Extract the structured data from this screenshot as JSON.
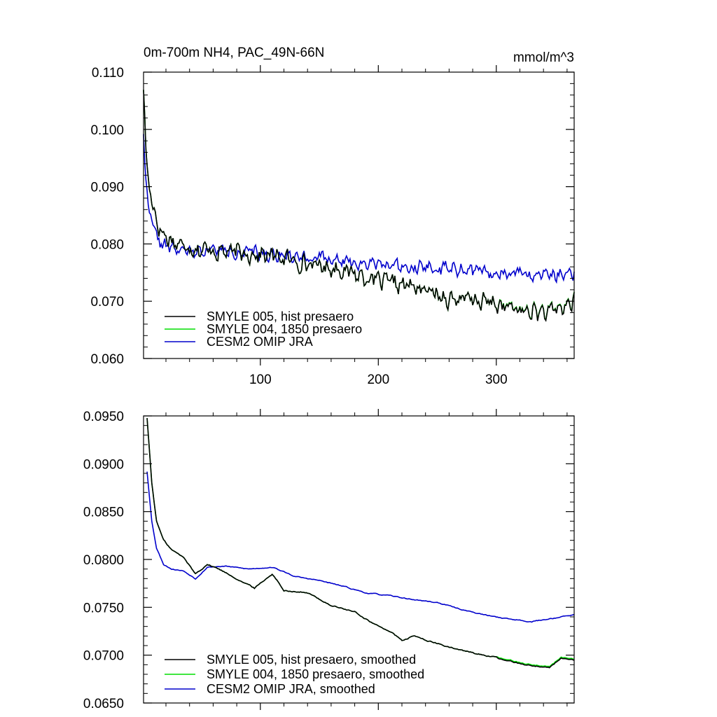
{
  "chart_data": [
    {
      "type": "line",
      "title": "0m-700m NH4, PAC_49N-66N",
      "units": "mmol/m^3",
      "xlabel": "",
      "ylabel": "",
      "xlim": [
        1,
        366
      ],
      "ylim": [
        0.06,
        0.11
      ],
      "x_ticks": [
        "100",
        "200",
        "300"
      ],
      "y_ticks": [
        "0.060",
        "0.070",
        "0.080",
        "0.090",
        "0.100",
        "0.110"
      ],
      "grid": false,
      "legend_position": "bottom-left",
      "series": [
        {
          "name": "SMYLE 005, hist presaero",
          "color": "#000000",
          "anchors": [
            [
              1,
              0.108
            ],
            [
              3,
              0.096
            ],
            [
              5,
              0.091
            ],
            [
              8,
              0.088
            ],
            [
              12,
              0.084
            ],
            [
              18,
              0.0815
            ],
            [
              30,
              0.08
            ],
            [
              50,
              0.079
            ],
            [
              80,
              0.0785
            ],
            [
              110,
              0.078
            ],
            [
              140,
              0.0765
            ],
            [
              170,
              0.0755
            ],
            [
              200,
              0.0735
            ],
            [
              230,
              0.0725
            ],
            [
              260,
              0.0705
            ],
            [
              290,
              0.07
            ],
            [
              320,
              0.0685
            ],
            [
              345,
              0.068
            ],
            [
              366,
              0.07
            ]
          ]
        },
        {
          "name": "SMYLE 004, 1850 presaero",
          "color": "#00dd00",
          "anchors": [
            [
              1,
              0.108
            ],
            [
              3,
              0.096
            ],
            [
              5,
              0.091
            ],
            [
              8,
              0.088
            ],
            [
              12,
              0.084
            ],
            [
              18,
              0.0815
            ],
            [
              30,
              0.08
            ],
            [
              50,
              0.079
            ],
            [
              80,
              0.0785
            ],
            [
              110,
              0.078
            ],
            [
              140,
              0.0765
            ],
            [
              170,
              0.0755
            ],
            [
              200,
              0.0735
            ],
            [
              230,
              0.0725
            ],
            [
              260,
              0.0705
            ],
            [
              290,
              0.07
            ],
            [
              320,
              0.0685
            ],
            [
              345,
              0.068
            ],
            [
              366,
              0.07
            ]
          ]
        },
        {
          "name": "CESM2 OMIP JRA",
          "color": "#0000cc",
          "anchors": [
            [
              1,
              0.1
            ],
            [
              3,
              0.091
            ],
            [
              5,
              0.087
            ],
            [
              8,
              0.084
            ],
            [
              12,
              0.081
            ],
            [
              20,
              0.0795
            ],
            [
              40,
              0.0785
            ],
            [
              60,
              0.079
            ],
            [
              90,
              0.0785
            ],
            [
              120,
              0.078
            ],
            [
              150,
              0.0775
            ],
            [
              180,
              0.077
            ],
            [
              210,
              0.0765
            ],
            [
              240,
              0.076
            ],
            [
              270,
              0.0755
            ],
            [
              300,
              0.075
            ],
            [
              330,
              0.0745
            ],
            [
              366,
              0.075
            ]
          ]
        }
      ]
    },
    {
      "type": "line",
      "title": "",
      "xlabel": "",
      "ylabel": "",
      "xlim": [
        1,
        366
      ],
      "ylim": [
        0.065,
        0.095
      ],
      "x_ticks": [],
      "y_ticks": [
        "0.0650",
        "0.0700",
        "0.0750",
        "0.0800",
        "0.0850",
        "0.0900",
        "0.0950"
      ],
      "grid": false,
      "legend_position": "bottom-left",
      "series": [
        {
          "name": "SMYLE 005, hist presaero, smoothed",
          "color": "#000000",
          "anchors": [
            [
              4,
              0.0948
            ],
            [
              8,
              0.088
            ],
            [
              12,
              0.084
            ],
            [
              18,
              0.082
            ],
            [
              25,
              0.081
            ],
            [
              35,
              0.0802
            ],
            [
              45,
              0.0785
            ],
            [
              55,
              0.0795
            ],
            [
              65,
              0.079
            ],
            [
              80,
              0.078
            ],
            [
              95,
              0.077
            ],
            [
              110,
              0.0785
            ],
            [
              120,
              0.0768
            ],
            [
              140,
              0.0765
            ],
            [
              160,
              0.0752
            ],
            [
              180,
              0.0745
            ],
            [
              200,
              0.073
            ],
            [
              210,
              0.0725
            ],
            [
              220,
              0.0715
            ],
            [
              230,
              0.072
            ],
            [
              250,
              0.0712
            ],
            [
              270,
              0.0705
            ],
            [
              290,
              0.07
            ],
            [
              310,
              0.0695
            ],
            [
              330,
              0.069
            ],
            [
              345,
              0.0688
            ],
            [
              355,
              0.0698
            ],
            [
              366,
              0.0695
            ]
          ]
        },
        {
          "name": "SMYLE 004, 1850 presaero, smoothed",
          "color": "#00dd00",
          "anchors": [
            [
              4,
              0.0948
            ],
            [
              8,
              0.088
            ],
            [
              12,
              0.084
            ],
            [
              18,
              0.082
            ],
            [
              25,
              0.081
            ],
            [
              35,
              0.0802
            ],
            [
              45,
              0.0785
            ],
            [
              55,
              0.0795
            ],
            [
              65,
              0.079
            ],
            [
              80,
              0.078
            ],
            [
              95,
              0.077
            ],
            [
              110,
              0.0785
            ],
            [
              120,
              0.0768
            ],
            [
              140,
              0.0765
            ],
            [
              160,
              0.0752
            ],
            [
              180,
              0.0745
            ],
            [
              200,
              0.073
            ],
            [
              210,
              0.0725
            ],
            [
              220,
              0.0715
            ],
            [
              230,
              0.072
            ],
            [
              250,
              0.0712
            ],
            [
              270,
              0.0705
            ],
            [
              290,
              0.07
            ],
            [
              310,
              0.0695
            ],
            [
              330,
              0.069
            ],
            [
              345,
              0.0688
            ],
            [
              355,
              0.0698
            ],
            [
              366,
              0.0695
            ]
          ]
        },
        {
          "name": "CESM2 OMIP JRA, smoothed",
          "color": "#0000cc",
          "anchors": [
            [
              4,
              0.0892
            ],
            [
              8,
              0.084
            ],
            [
              12,
              0.0812
            ],
            [
              18,
              0.0795
            ],
            [
              25,
              0.079
            ],
            [
              35,
              0.0788
            ],
            [
              45,
              0.078
            ],
            [
              55,
              0.0792
            ],
            [
              70,
              0.0793
            ],
            [
              90,
              0.079
            ],
            [
              110,
              0.0792
            ],
            [
              130,
              0.0782
            ],
            [
              150,
              0.0778
            ],
            [
              170,
              0.0772
            ],
            [
              190,
              0.0765
            ],
            [
              210,
              0.0762
            ],
            [
              230,
              0.0758
            ],
            [
              250,
              0.0755
            ],
            [
              270,
              0.0748
            ],
            [
              290,
              0.0742
            ],
            [
              310,
              0.0738
            ],
            [
              330,
              0.0735
            ],
            [
              345,
              0.0738
            ],
            [
              355,
              0.074
            ],
            [
              366,
              0.0742
            ]
          ]
        }
      ]
    }
  ]
}
